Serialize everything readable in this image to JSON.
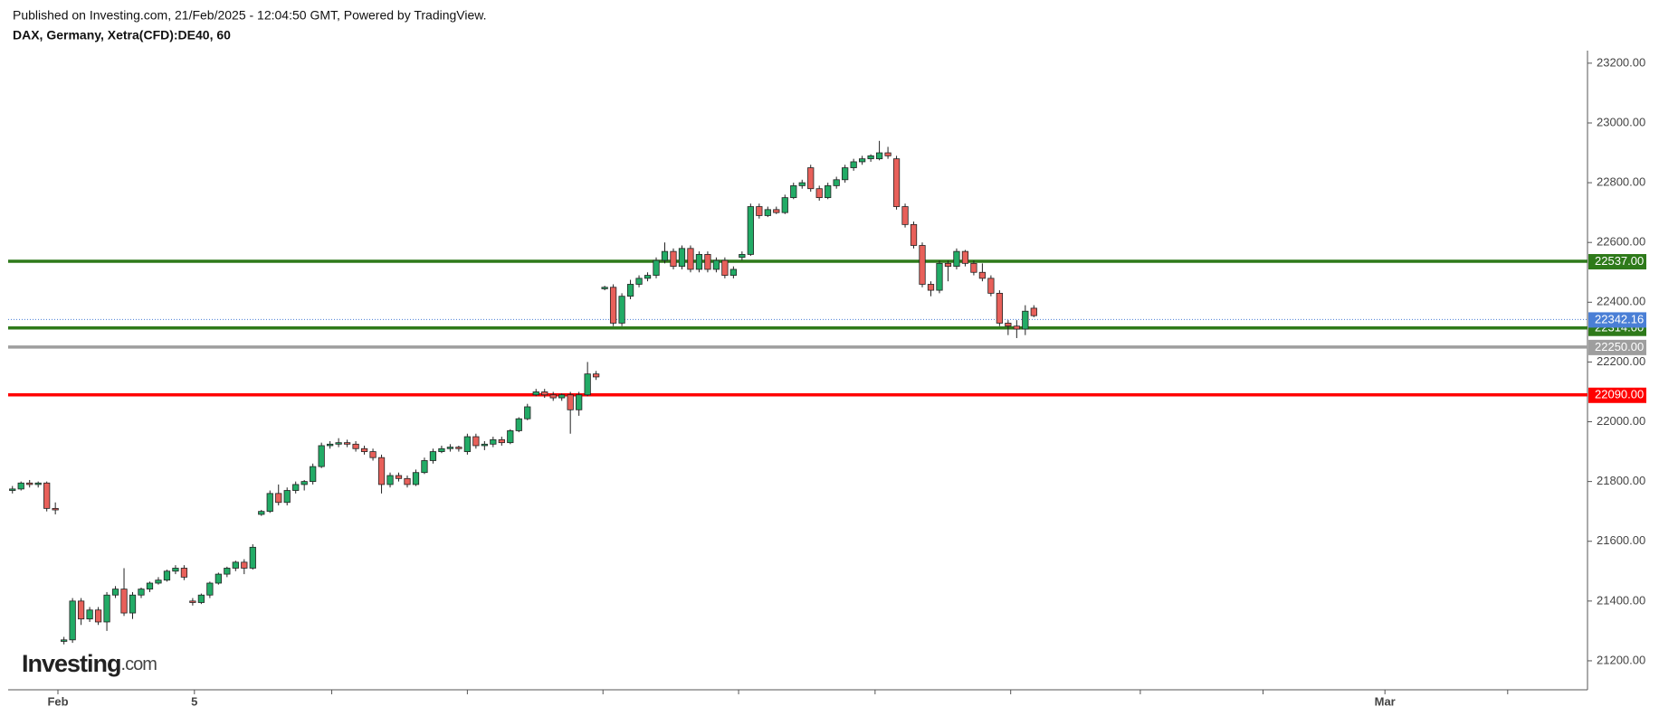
{
  "header": {
    "published": "Published on Investing.com, 21/Feb/2025 - 12:04:50 GMT, Powered by TradingView.",
    "symbol": "DAX, Germany, Xetra(CFD):DE40, 60"
  },
  "logo": {
    "brand": "Investing",
    "suffix": ".com"
  },
  "chart_data": {
    "type": "candlestick",
    "up_color": "#22ab66",
    "down_color": "#e8605a",
    "xlim": [
      0,
      184
    ],
    "ylim": [
      21103,
      23242
    ],
    "xticks": [
      {
        "value": 5.8,
        "label": "Feb"
      },
      {
        "value": 21.7,
        "label": "5"
      },
      {
        "value": 37.7,
        "label": null
      },
      {
        "value": 53.5,
        "label": null
      },
      {
        "value": 69.3,
        "label": null
      },
      {
        "value": 85.1,
        "label": null
      },
      {
        "value": 101,
        "label": null
      },
      {
        "value": 116.8,
        "label": null
      },
      {
        "value": 131.9,
        "label": null
      },
      {
        "value": 146.2,
        "label": null
      },
      {
        "value": 160.4,
        "label": "Mar"
      },
      {
        "value": 174.7,
        "label": null
      }
    ],
    "yticks": [
      {
        "value": 21200,
        "label": "21200.00"
      },
      {
        "value": 21400,
        "label": "21400.00"
      },
      {
        "value": 21600,
        "label": "21600.00"
      },
      {
        "value": 21800,
        "label": "21800.00"
      },
      {
        "value": 22000,
        "label": "22000.00"
      },
      {
        "value": 22200,
        "label": "22200.00"
      },
      {
        "value": 22400,
        "label": "22400.00"
      },
      {
        "value": 22600,
        "label": "22600.00"
      },
      {
        "value": 22800,
        "label": "22800.00"
      },
      {
        "value": 23000,
        "label": "23000.00"
      },
      {
        "value": 23200,
        "label": "23200.00"
      }
    ],
    "levels": [
      {
        "value": 22537,
        "label": "22537.00",
        "color": "#2e7a1a"
      },
      {
        "value": 22314,
        "label": "22314.00",
        "color": "#2e7a1a"
      },
      {
        "value": 22250,
        "label": "22250.00",
        "color": "#9e9e9e"
      },
      {
        "value": 22090,
        "label": "22090.00",
        "color": "#ff0000"
      }
    ],
    "last_price": {
      "value": 22342.16,
      "label": "22342.16",
      "color": "#4a7fd6"
    },
    "ohlc": [
      [
        21770,
        21785,
        21760,
        21775
      ],
      [
        21775,
        21800,
        21770,
        21795
      ],
      [
        21795,
        21805,
        21780,
        21790
      ],
      [
        21790,
        21800,
        21780,
        21795
      ],
      [
        21795,
        21800,
        21700,
        21710
      ],
      [
        21710,
        21730,
        21690,
        21705
      ],
      [
        21265,
        21280,
        21255,
        21270
      ],
      [
        21270,
        21410,
        21260,
        21400
      ],
      [
        21400,
        21410,
        21320,
        21340
      ],
      [
        21340,
        21380,
        21330,
        21370
      ],
      [
        21370,
        21380,
        21320,
        21330
      ],
      [
        21330,
        21430,
        21300,
        21420
      ],
      [
        21420,
        21450,
        21410,
        21440
      ],
      [
        21440,
        21510,
        21350,
        21360
      ],
      [
        21360,
        21430,
        21340,
        21420
      ],
      [
        21420,
        21445,
        21410,
        21440
      ],
      [
        21440,
        21465,
        21430,
        21460
      ],
      [
        21460,
        21480,
        21455,
        21470
      ],
      [
        21470,
        21505,
        21465,
        21500
      ],
      [
        21500,
        21520,
        21490,
        21510
      ],
      [
        21510,
        21520,
        21470,
        21480
      ],
      [
        21400,
        21410,
        21385,
        21395
      ],
      [
        21395,
        21425,
        21390,
        21420
      ],
      [
        21420,
        21465,
        21410,
        21460
      ],
      [
        21460,
        21495,
        21455,
        21490
      ],
      [
        21490,
        21515,
        21480,
        21510
      ],
      [
        21510,
        21535,
        21500,
        21530
      ],
      [
        21530,
        21540,
        21490,
        21510
      ],
      [
        21510,
        21590,
        21505,
        21580
      ],
      [
        21690,
        21705,
        21685,
        21700
      ],
      [
        21700,
        21770,
        21695,
        21760
      ],
      [
        21760,
        21790,
        21720,
        21730
      ],
      [
        21730,
        21780,
        21720,
        21770
      ],
      [
        21770,
        21800,
        21760,
        21790
      ],
      [
        21790,
        21805,
        21770,
        21800
      ],
      [
        21800,
        21860,
        21790,
        21850
      ],
      [
        21850,
        21930,
        21845,
        21920
      ],
      [
        21920,
        21935,
        21910,
        21925
      ],
      [
        21925,
        21945,
        21915,
        21930
      ],
      [
        21930,
        21940,
        21915,
        21925
      ],
      [
        21925,
        21935,
        21900,
        21910
      ],
      [
        21910,
        21920,
        21890,
        21900
      ],
      [
        21900,
        21910,
        21870,
        21880
      ],
      [
        21880,
        21890,
        21760,
        21790
      ],
      [
        21790,
        21830,
        21780,
        21820
      ],
      [
        21820,
        21830,
        21800,
        21810
      ],
      [
        21810,
        21820,
        21780,
        21790
      ],
      [
        21790,
        21840,
        21785,
        21830
      ],
      [
        21830,
        21880,
        21825,
        21870
      ],
      [
        21870,
        21910,
        21860,
        21900
      ],
      [
        21900,
        21920,
        21895,
        21910
      ],
      [
        21910,
        21925,
        21900,
        21915
      ],
      [
        21915,
        21920,
        21900,
        21910
      ],
      [
        21900,
        21960,
        21890,
        21950
      ],
      [
        21950,
        21960,
        21910,
        21920
      ],
      [
        21920,
        21935,
        21905,
        21925
      ],
      [
        21925,
        21950,
        21915,
        21940
      ],
      [
        21940,
        21950,
        21920,
        21930
      ],
      [
        21930,
        21975,
        21925,
        21970
      ],
      [
        21970,
        22015,
        21965,
        22010
      ],
      [
        22010,
        22060,
        22005,
        22050
      ],
      [
        22090,
        22110,
        22085,
        22100
      ],
      [
        22100,
        22110,
        22080,
        22090
      ],
      [
        22090,
        22100,
        22070,
        22080
      ],
      [
        22080,
        22095,
        22070,
        22090
      ],
      [
        22090,
        22100,
        21960,
        22040
      ],
      [
        22040,
        22100,
        22020,
        22090
      ],
      [
        22090,
        22200,
        22085,
        22160
      ],
      [
        22160,
        22170,
        22140,
        22150
      ],
      [
        22445,
        22455,
        22440,
        22450
      ],
      [
        22450,
        22460,
        22320,
        22330
      ],
      [
        22330,
        22430,
        22320,
        22420
      ],
      [
        22420,
        22475,
        22410,
        22460
      ],
      [
        22460,
        22490,
        22450,
        22480
      ],
      [
        22480,
        22500,
        22470,
        22490
      ],
      [
        22490,
        22550,
        22480,
        22540
      ],
      [
        22540,
        22600,
        22530,
        22570
      ],
      [
        22570,
        22580,
        22510,
        22520
      ],
      [
        22520,
        22590,
        22510,
        22580
      ],
      [
        22580,
        22590,
        22500,
        22510
      ],
      [
        22510,
        22570,
        22500,
        22560
      ],
      [
        22560,
        22570,
        22500,
        22510
      ],
      [
        22510,
        22550,
        22500,
        22540
      ],
      [
        22540,
        22550,
        22480,
        22490
      ],
      [
        22490,
        22520,
        22480,
        22510
      ],
      [
        22550,
        22570,
        22540,
        22560
      ],
      [
        22560,
        22730,
        22555,
        22720
      ],
      [
        22720,
        22730,
        22680,
        22690
      ],
      [
        22690,
        22720,
        22685,
        22710
      ],
      [
        22710,
        22720,
        22695,
        22700
      ],
      [
        22700,
        22760,
        22695,
        22750
      ],
      [
        22750,
        22800,
        22745,
        22790
      ],
      [
        22790,
        22810,
        22780,
        22800
      ],
      [
        22850,
        22860,
        22770,
        22780
      ],
      [
        22780,
        22790,
        22740,
        22750
      ],
      [
        22750,
        22800,
        22745,
        22790
      ],
      [
        22790,
        22820,
        22780,
        22810
      ],
      [
        22810,
        22860,
        22800,
        22850
      ],
      [
        22850,
        22880,
        22840,
        22870
      ],
      [
        22870,
        22890,
        22860,
        22880
      ],
      [
        22880,
        22895,
        22870,
        22890
      ],
      [
        22880,
        22940,
        22875,
        22900
      ],
      [
        22900,
        22920,
        22880,
        22890
      ],
      [
        22880,
        22890,
        22710,
        22720
      ],
      [
        22720,
        22730,
        22650,
        22660
      ],
      [
        22660,
        22670,
        22580,
        22590
      ],
      [
        22590,
        22600,
        22450,
        22460
      ],
      [
        22460,
        22470,
        22420,
        22440
      ],
      [
        22440,
        22540,
        22430,
        22530
      ],
      [
        22530,
        22540,
        22470,
        22520
      ],
      [
        22520,
        22580,
        22510,
        22570
      ],
      [
        22570,
        22575,
        22520,
        22530
      ],
      [
        22530,
        22540,
        22490,
        22500
      ],
      [
        22500,
        22530,
        22470,
        22480
      ],
      [
        22480,
        22490,
        22420,
        22430
      ],
      [
        22430,
        22440,
        22320,
        22330
      ],
      [
        22330,
        22340,
        22290,
        22320
      ],
      [
        22320,
        22340,
        22280,
        22310
      ],
      [
        22310,
        22390,
        22290,
        22370
      ],
      [
        22380,
        22390,
        22350,
        22355
      ]
    ]
  }
}
